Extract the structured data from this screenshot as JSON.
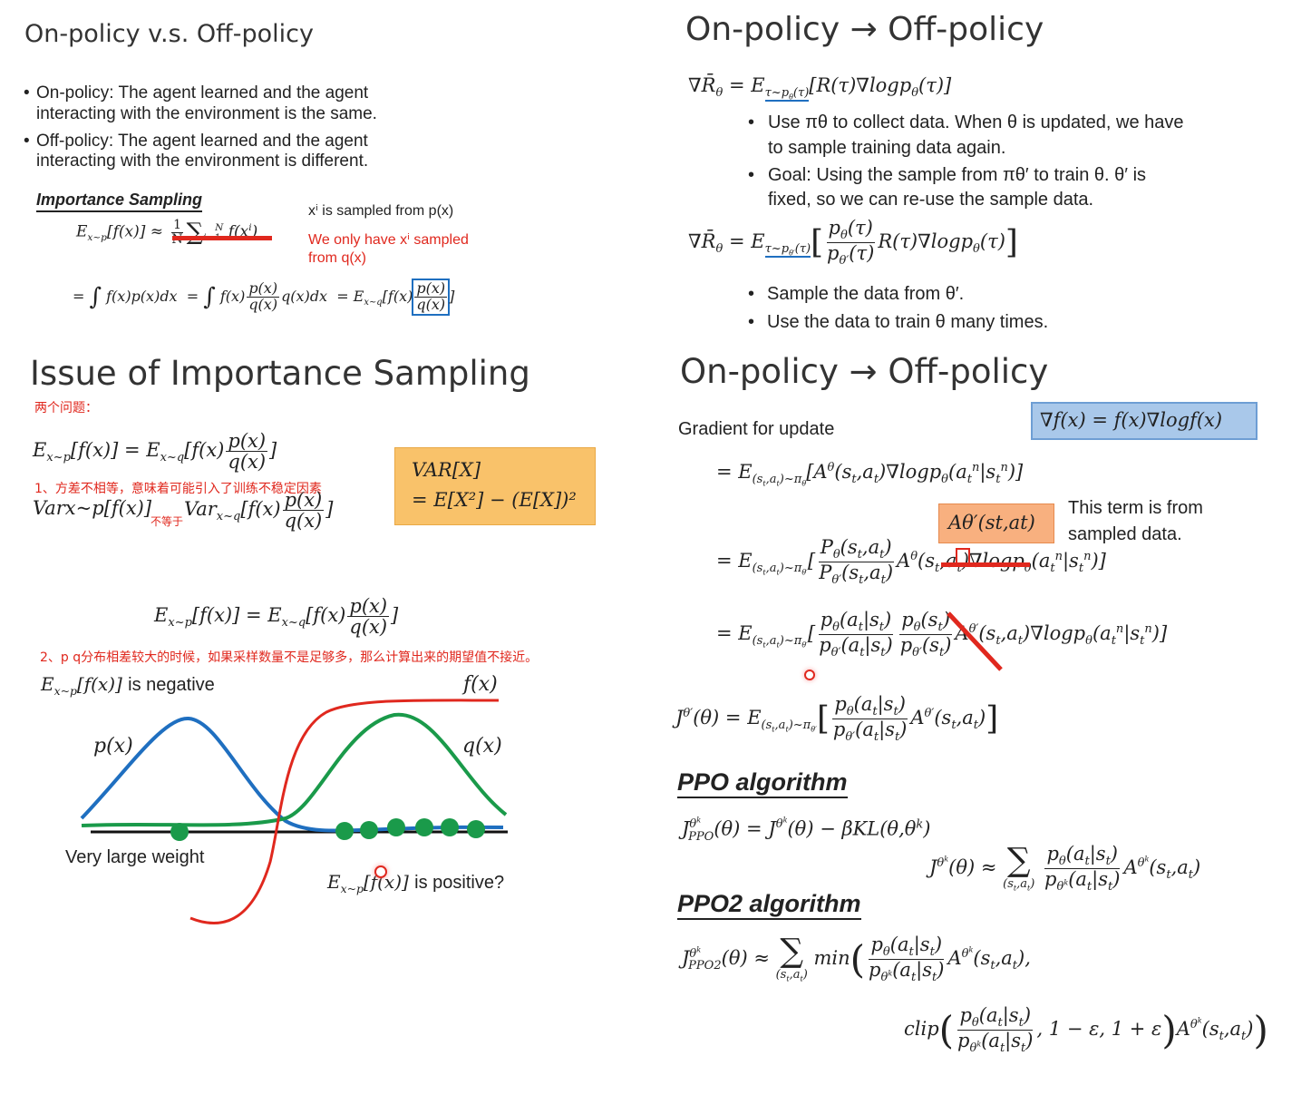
{
  "p1": {
    "title": "On-policy v.s. Off-policy",
    "bullets": [
      "On-policy: The agent learned and the agent",
      "interacting with the environment is the same.",
      "Off-policy: The agent learned and the agent",
      "interacting with the environment is different."
    ],
    "is_heading": "Importance Sampling",
    "note1": "xⁱ is sampled from p(x)",
    "note2a": "We only have xⁱ sampled",
    "note2b": "from q(x)",
    "eq1": "Ex~p[f(x)] ≈ (1/N) Σi=1..N f(xⁱ)",
    "eq2": "= ∫ f(x)p(x)dx = ∫ f(x) p(x)/q(x) q(x)dx = Ex~q[f(x) p(x)/q(x)]"
  },
  "p2": {
    "title": "Issue of Importance Sampling",
    "cn_heading": "两个问题：",
    "eq_a": "Ex~p[f(x)] = Ex~q[f(x) p(x)/q(x)]",
    "cn_1": "1、方差不相等，意味着可能引入了训练不稳定因素",
    "eq_b": "Varx~p[f(x)]",
    "not_equal": "不等于",
    "eq_b2": "Varx~q[f(x) p(x)/q(x)]",
    "var_box_1": "VAR[X]",
    "var_box_2": "= E[X²] − (E[X])²",
    "cn_2": "2、p q分布相差较大的时候，如果采样数量不是足够多，那么计算出来的期望值不接近。",
    "neg_label": "Ex~p[f(x)] is negative",
    "fx_label": "f(x)",
    "px_label": "p(x)",
    "qx_label": "q(x)",
    "weight_label": "Very large weight",
    "pos_label": "Ex~p[f(x)] is positive?"
  },
  "p3": {
    "title": "On-policy → Off-policy",
    "grad1": "∇R̄θ = Eτ~pθ(τ)[R(τ)∇logpθ(τ)]",
    "b1a": "Use πθ to collect data. When θ is updated, we have",
    "b1b": "to sample training data again.",
    "b2a": "Goal: Using the sample from πθ′ to train θ. θ′ is",
    "b2b": "fixed, so we can re-use the sample data.",
    "grad2": "∇R̄θ = Eτ~pθ′(τ)[pθ(τ)/pθ′(τ) R(τ)∇logpθ(τ)]",
    "b3": "Sample the data from θ′.",
    "b4": "Use the data to train θ many times."
  },
  "p4": {
    "title": "On-policy → Off-policy",
    "gradient_label": "Gradient for update",
    "identity": "∇f(x) = f(x)∇logf(x)",
    "line1": "= E(st,at)~πθ[Aθ(st,at)∇logpθ(atⁿ|stⁿ)]",
    "adv_box": "Aθ′(st,at)",
    "term_note_a": "This term is from",
    "term_note_b": "sampled data.",
    "line2": "= E(st,at)~πθ′[Pθ(st,at)/Pθ′(st,at) Aθ(st,at)∇logpθ(atⁿ|stⁿ)]",
    "line3": "= E(st,at)~πθ′[pθ(at|st)/pθ′(at|st) pθ(st)/pθ′(st) Aθ′(st,at)∇logpθ(atⁿ|stⁿ)]",
    "objective": "Jθ′(θ) = E(st,at)~πθ′[pθ(at|st)/pθ′(at|st) Aθ′(st,at)]",
    "ppo_heading": "PPO algorithm",
    "ppo_eq1": "JθkPPO(θ) = Jθk(θ) − βKL(θ,θk)",
    "ppo_eq2": "Jθk(θ) ≈ Σ(st,at) pθ(at|st)/pθk(at|st) Aθk(st,at)",
    "ppo2_heading": "PPO2 algorithm",
    "ppo2_eq": "JθkPPO2(θ) ≈ Σ(st,at) min( pθ(at|st)/pθk(at|st) Aθk(st,at), clip( pθ(at|st)/pθk(at|st), 1−ε, 1+ε) Aθk(st,at) )"
  },
  "colors": {
    "red": "#e0281e",
    "blue": "#1f6fc0",
    "green": "#1a9a4a",
    "orange_box": "#f9c26a",
    "blue_box": "#a9c8ea"
  }
}
